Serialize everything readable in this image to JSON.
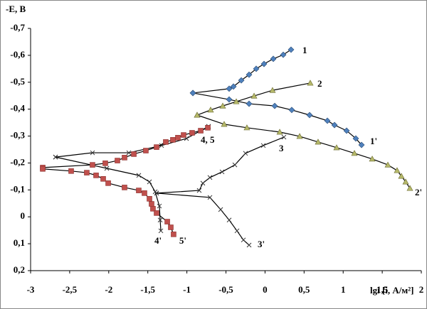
{
  "chart_data": {
    "type": "line",
    "y_label": "-E, В",
    "x_label": "lgi [i, А/м²]",
    "xlim": [
      -3,
      2
    ],
    "ylim": [
      -0.7,
      0.2
    ],
    "y_reversed": true,
    "xticks": [
      -3,
      {
        "value": -2.5,
        "label": "-2,5"
      },
      -2,
      {
        "value": -1.5,
        "label": "-1,5"
      },
      -1,
      {
        "value": -0.5,
        "label": "-0,5"
      },
      0,
      {
        "value": 0.5,
        "label": "0,5"
      },
      1,
      {
        "value": 1.5,
        "label": "1,5"
      },
      2
    ],
    "yticks": [
      {
        "value": -0.7,
        "label": "-0,7"
      },
      {
        "value": -0.6,
        "label": "-0,6"
      },
      {
        "value": -0.5,
        "label": "-0,5"
      },
      {
        "value": -0.4,
        "label": "-0,4"
      },
      {
        "value": -0.3,
        "label": "-0,3"
      },
      {
        "value": -0.2,
        "label": "-0,2"
      },
      {
        "value": -0.1,
        "label": "-0,1"
      },
      0,
      {
        "value": 0.1,
        "label": "0,1"
      },
      {
        "value": 0.2,
        "label": "0,2"
      }
    ],
    "annotations": [
      "4, 5"
    ],
    "series": [
      {
        "name": "1",
        "marker": "diamond",
        "color": "#4f81bd",
        "x": [
          -0.923,
          -0.459,
          -0.404,
          -0.304,
          -0.204,
          -0.113,
          -0.013,
          0.106,
          0.233,
          0.333
        ],
        "values": [
          -0.46,
          -0.476,
          -0.484,
          -0.507,
          -0.528,
          -0.55,
          -0.568,
          -0.587,
          -0.602,
          -0.621
        ]
      },
      {
        "name": "1'",
        "marker": "diamond",
        "color": "#4f81bd",
        "x": [
          -0.923,
          -0.459,
          -0.204,
          0.124,
          0.342,
          0.57,
          0.798,
          0.889,
          1.044,
          1.162,
          1.235
        ],
        "values": [
          -0.46,
          -0.436,
          -0.42,
          -0.412,
          -0.397,
          -0.378,
          -0.357,
          -0.341,
          -0.32,
          -0.291,
          -0.267
        ]
      },
      {
        "name": "2",
        "marker": "triangle",
        "color": "#b5b86a",
        "x": [
          -0.869,
          -0.696,
          -0.541,
          -0.368,
          -0.14,
          0.096,
          0.579
        ],
        "values": [
          -0.378,
          -0.397,
          -0.412,
          -0.428,
          -0.449,
          -0.47,
          -0.497
        ]
      },
      {
        "name": "2'",
        "marker": "triangle",
        "color": "#b5b86a",
        "x": [
          -0.869,
          -0.523,
          -0.232,
          0.188,
          0.443,
          0.679,
          0.916,
          1.144,
          1.372,
          1.572,
          1.69,
          1.745,
          1.8,
          1.854
        ],
        "values": [
          -0.378,
          -0.344,
          -0.331,
          -0.315,
          -0.299,
          -0.278,
          -0.257,
          -0.236,
          -0.215,
          -0.193,
          -0.172,
          -0.151,
          -0.13,
          -0.106
        ]
      },
      {
        "name": "3",
        "marker": "x",
        "color": "#333333",
        "x": [
          -1.388,
          -0.842,
          -0.796,
          -0.705,
          -0.55,
          -0.386,
          -0.25,
          -0.022,
          0.242
        ],
        "values": [
          -0.088,
          -0.098,
          -0.125,
          -0.146,
          -0.167,
          -0.193,
          -0.236,
          -0.265,
          -0.296
        ]
      },
      {
        "name": "3'",
        "marker": "x",
        "color": "#333333",
        "x": [
          -1.388,
          -0.705,
          -0.568,
          -0.459,
          -0.359,
          -0.277,
          -0.204
        ],
        "values": [
          -0.088,
          -0.072,
          -0.027,
          0.012,
          0.052,
          0.086,
          0.105
        ]
      },
      {
        "marker": "x",
        "color": "#333333",
        "x": [
          -2.681,
          -2.208,
          -1.743,
          -1.324,
          -1.005,
          -0.723
        ],
        "values": [
          -0.222,
          -0.238,
          -0.238,
          -0.265,
          -0.291,
          -0.336
        ]
      },
      {
        "name": "4'",
        "marker": "x",
        "color": "#333333",
        "x": [
          -2.681,
          -2.025,
          -1.616,
          -1.479,
          -1.406,
          -1.352,
          -1.342,
          -1.333
        ],
        "values": [
          -0.222,
          -0.18,
          -0.154,
          -0.13,
          -0.093,
          -0.04,
          0.012,
          0.052
        ]
      },
      {
        "marker": "square",
        "color": "#c0504d",
        "x": [
          -2.845,
          -2.208,
          -2.044,
          -1.889,
          -1.798,
          -1.679,
          -1.525,
          -1.388,
          -1.27,
          -1.179,
          -1.115,
          -1.042,
          -0.933,
          -0.823,
          -0.732
        ],
        "values": [
          -0.183,
          -0.193,
          -0.199,
          -0.209,
          -0.22,
          -0.233,
          -0.246,
          -0.259,
          -0.278,
          -0.286,
          -0.294,
          -0.304,
          -0.312,
          -0.32,
          -0.331
        ]
      },
      {
        "name": "5'",
        "marker": "square",
        "color": "#c0504d",
        "x": [
          -2.845,
          -2.481,
          -2.281,
          -2.162,
          -2.071,
          -2.007,
          -1.798,
          -1.616,
          -1.543,
          -1.479,
          -1.452,
          -1.434,
          -1.388,
          -1.251,
          -1.206,
          -1.17
        ],
        "values": [
          -0.178,
          -0.17,
          -0.164,
          -0.154,
          -0.141,
          -0.125,
          -0.109,
          -0.098,
          -0.088,
          -0.067,
          -0.048,
          -0.03,
          -0.014,
          0.018,
          0.039,
          0.065
        ]
      }
    ]
  }
}
